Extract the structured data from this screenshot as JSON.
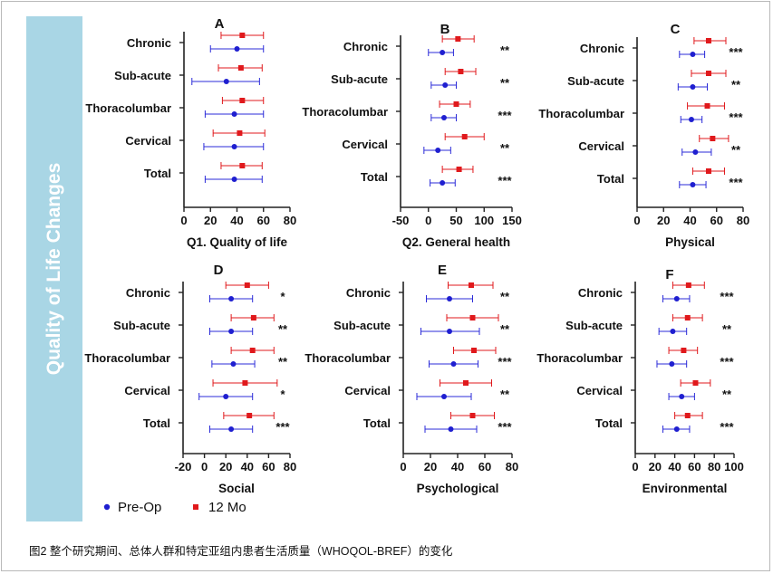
{
  "side_title": "Quality of Life Changes",
  "caption": "图2 整个研究期间、总体人群和特定亚组内患者生活质量（WHOQOL-BREF）的变化",
  "legend": {
    "pre": "Pre-Op",
    "post": "12 Mo",
    "colors": {
      "pre": "#1f1fd0",
      "post": "#e0191c",
      "whisker_pre": "#2b2bd8",
      "whisker_post": "#e0191c"
    }
  },
  "chart_data": [
    {
      "type": "forest",
      "letter": "A",
      "title": "Q1. Quality of life",
      "xlim": [
        0,
        80
      ],
      "ticks": [
        0,
        20,
        40,
        60,
        80
      ],
      "rows": [
        {
          "label": "Chronic",
          "pre": [
            40,
            20,
            60
          ],
          "post": [
            44,
            28,
            60
          ],
          "sig": ""
        },
        {
          "label": "Sub-acute",
          "pre": [
            32,
            6,
            57
          ],
          "post": [
            43,
            26,
            59
          ],
          "sig": ""
        },
        {
          "label": "Thoracolumbar",
          "pre": [
            38,
            16,
            60
          ],
          "post": [
            44,
            29,
            60
          ],
          "sig": ""
        },
        {
          "label": "Cervical",
          "pre": [
            38,
            15,
            60
          ],
          "post": [
            42,
            22,
            61
          ],
          "sig": ""
        },
        {
          "label": "Total",
          "pre": [
            38,
            16,
            59
          ],
          "post": [
            44,
            28,
            59
          ],
          "sig": ""
        }
      ]
    },
    {
      "type": "forest",
      "letter": "B",
      "title": "Q2. General health",
      "xlim": [
        -50,
        150
      ],
      "ticks": [
        -50,
        0,
        50,
        100,
        150
      ],
      "rows": [
        {
          "label": "Chronic",
          "pre": [
            25,
            0,
            45
          ],
          "post": [
            53,
            25,
            82
          ],
          "sig": "**"
        },
        {
          "label": "Sub-acute",
          "pre": [
            30,
            5,
            50
          ],
          "post": [
            58,
            30,
            85
          ],
          "sig": "**"
        },
        {
          "label": "Thoracolumbar",
          "pre": [
            28,
            5,
            50
          ],
          "post": [
            50,
            20,
            75
          ],
          "sig": "***"
        },
        {
          "label": "Cervical",
          "pre": [
            17,
            -8,
            40
          ],
          "post": [
            65,
            30,
            100
          ],
          "sig": "**"
        },
        {
          "label": "Total",
          "pre": [
            25,
            3,
            48
          ],
          "post": [
            55,
            25,
            80
          ],
          "sig": "***"
        }
      ]
    },
    {
      "type": "forest",
      "letter": "C",
      "title": "Physical",
      "xlim": [
        0,
        80
      ],
      "ticks": [
        0,
        20,
        40,
        60,
        80
      ],
      "rows": [
        {
          "label": "Chronic",
          "pre": [
            42,
            32,
            51
          ],
          "post": [
            54,
            43,
            67
          ],
          "sig": "***"
        },
        {
          "label": "Sub-acute",
          "pre": [
            42,
            31,
            53
          ],
          "post": [
            54,
            41,
            67
          ],
          "sig": "**"
        },
        {
          "label": "Thoracolumbar",
          "pre": [
            41,
            33,
            49
          ],
          "post": [
            53,
            38,
            66
          ],
          "sig": "***"
        },
        {
          "label": "Cervical",
          "pre": [
            44,
            34,
            56
          ],
          "post": [
            57,
            47,
            69
          ],
          "sig": "**"
        },
        {
          "label": "Total",
          "pre": [
            42,
            32,
            52
          ],
          "post": [
            54,
            42,
            66
          ],
          "sig": "***"
        }
      ]
    },
    {
      "type": "forest",
      "letter": "D",
      "title": "Social",
      "xlim": [
        -20,
        80
      ],
      "ticks": [
        -20,
        0,
        20,
        40,
        60,
        80
      ],
      "rows": [
        {
          "label": "Chronic",
          "pre": [
            25,
            5,
            45
          ],
          "post": [
            40,
            20,
            60
          ],
          "sig": "*"
        },
        {
          "label": "Sub-acute",
          "pre": [
            25,
            5,
            45
          ],
          "post": [
            46,
            25,
            65
          ],
          "sig": "**"
        },
        {
          "label": "Thoracolumbar",
          "pre": [
            27,
            7,
            47
          ],
          "post": [
            45,
            25,
            65
          ],
          "sig": "**"
        },
        {
          "label": "Cervical",
          "pre": [
            20,
            -5,
            45
          ],
          "post": [
            38,
            8,
            68
          ],
          "sig": "*"
        },
        {
          "label": "Total",
          "pre": [
            25,
            5,
            45
          ],
          "post": [
            42,
            18,
            65
          ],
          "sig": "***"
        }
      ]
    },
    {
      "type": "forest",
      "letter": "E",
      "title": "Psychological",
      "xlim": [
        0,
        80
      ],
      "ticks": [
        0,
        20,
        40,
        60,
        80
      ],
      "rows": [
        {
          "label": "Chronic",
          "pre": [
            34,
            17,
            51
          ],
          "post": [
            50,
            33,
            66
          ],
          "sig": "**"
        },
        {
          "label": "Sub-acute",
          "pre": [
            34,
            13,
            56
          ],
          "post": [
            51,
            32,
            70
          ],
          "sig": "**"
        },
        {
          "label": "Thoracolumbar",
          "pre": [
            37,
            19,
            55
          ],
          "post": [
            52,
            37,
            68
          ],
          "sig": "***"
        },
        {
          "label": "Cervical",
          "pre": [
            30,
            10,
            50
          ],
          "post": [
            46,
            27,
            65
          ],
          "sig": "**"
        },
        {
          "label": "Total",
          "pre": [
            35,
            16,
            54
          ],
          "post": [
            51,
            35,
            67
          ],
          "sig": "***"
        }
      ]
    },
    {
      "type": "forest",
      "letter": "F",
      "title": "Environmental",
      "xlim": [
        0,
        100
      ],
      "ticks": [
        0,
        20,
        40,
        60,
        80,
        100
      ],
      "rows": [
        {
          "label": "Chronic",
          "pre": [
            42,
            28,
            55
          ],
          "post": [
            54,
            38,
            70
          ],
          "sig": "***"
        },
        {
          "label": "Sub-acute",
          "pre": [
            38,
            24,
            52
          ],
          "post": [
            53,
            38,
            68
          ],
          "sig": "**"
        },
        {
          "label": "Thoracolumbar",
          "pre": [
            37,
            22,
            52
          ],
          "post": [
            49,
            34,
            63
          ],
          "sig": "***"
        },
        {
          "label": "Cervical",
          "pre": [
            47,
            34,
            60
          ],
          "post": [
            61,
            46,
            76
          ],
          "sig": "**"
        },
        {
          "label": "Total",
          "pre": [
            42,
            28,
            55
          ],
          "post": [
            53,
            40,
            68
          ],
          "sig": "***"
        }
      ]
    }
  ]
}
